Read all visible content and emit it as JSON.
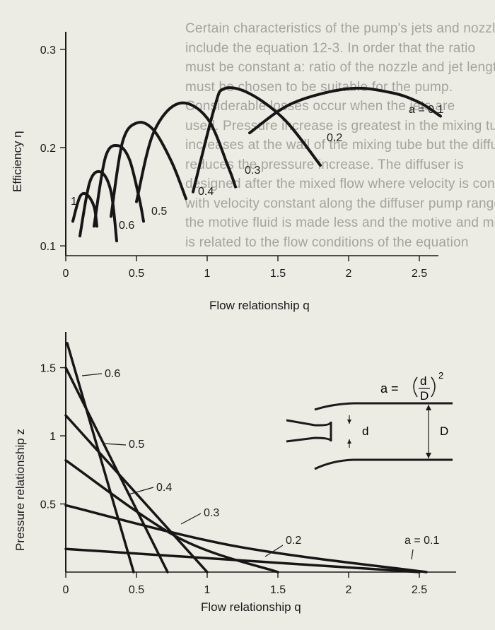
{
  "background_text": [
    "Certain characteristics of the pump's jets and nozzles",
    "include the equation 12-3. In order that the ratio",
    "must be constant a: ratio of the nozzle and jet length",
    "must be chosen to be suitable for the pump.",
    "Considerable losses occur when the jets are",
    "used. Pressure increase is greatest in the mixing tube",
    "increases at the wall of the mixing tube but the diffuser",
    "reduces the pressure increase. The diffuser is",
    "designed after the mixed flow where velocity is constant",
    "with velocity constant along the diffuser pump range",
    "the motive fluid is made less and the motive and mixed flow",
    "is related to the flow conditions of the equation"
  ],
  "chart_data": [
    {
      "type": "line",
      "title": "",
      "xlabel": "Flow relationship q",
      "ylabel": "Efficiency η",
      "xlim": [
        0,
        2.6
      ],
      "ylim": [
        0.09,
        0.31
      ],
      "xticks": [
        0,
        0.5,
        1,
        1.5,
        2,
        2.5
      ],
      "xtick_labels": [
        "0",
        "0.5",
        "1",
        "1.5",
        "2",
        "2.5"
      ],
      "yticks": [
        0.1,
        0.2,
        0.3
      ],
      "ytick_labels": [
        "0.1",
        "0.2",
        "0.3"
      ],
      "series": [
        {
          "name": "a = 0.1",
          "label": "a = 0.1",
          "x": [
            1.3,
            1.6,
            2.0,
            2.3,
            2.5,
            2.65
          ],
          "y": [
            0.215,
            0.245,
            0.26,
            0.256,
            0.246,
            0.232
          ]
        },
        {
          "name": "0.2",
          "label": "0.2",
          "x": [
            0.9,
            1.05,
            1.12,
            1.3,
            1.55,
            1.8
          ],
          "y": [
            0.155,
            0.24,
            0.26,
            0.255,
            0.228,
            0.182
          ]
        },
        {
          "name": "0.3",
          "label": "0.3",
          "x": [
            0.5,
            0.62,
            0.8,
            1.0,
            1.15,
            1.2
          ],
          "y": [
            0.145,
            0.215,
            0.245,
            0.23,
            0.18,
            0.16
          ]
        },
        {
          "name": "0.4",
          "label": "0.4",
          "x": [
            0.32,
            0.4,
            0.5,
            0.62,
            0.75,
            0.85
          ],
          "y": [
            0.13,
            0.205,
            0.225,
            0.218,
            0.185,
            0.148
          ]
        },
        {
          "name": "0.5",
          "label": "0.5",
          "x": [
            0.2,
            0.28,
            0.37,
            0.45,
            0.52,
            0.55
          ],
          "y": [
            0.12,
            0.19,
            0.202,
            0.188,
            0.148,
            0.125
          ]
        },
        {
          "name": "0.6",
          "label": "0.6",
          "x": [
            0.1,
            0.17,
            0.25,
            0.32,
            0.36
          ],
          "y": [
            0.11,
            0.165,
            0.175,
            0.155,
            0.105
          ]
        },
        {
          "name": "1",
          "label": "1",
          "x": [
            0.05,
            0.1,
            0.15,
            0.2,
            0.22
          ],
          "y": [
            0.125,
            0.15,
            0.152,
            0.14,
            0.12
          ]
        }
      ]
    },
    {
      "type": "line",
      "title": "",
      "xlabel": "Flow relationship q",
      "ylabel": "Pressure relationship z",
      "xlim": [
        0,
        2.6
      ],
      "ylim": [
        0,
        1.7
      ],
      "xticks": [
        0,
        0.5,
        1,
        1.5,
        2,
        2.5
      ],
      "xtick_labels": [
        "0",
        "0.5",
        "1",
        "1.5",
        "2",
        "2.5"
      ],
      "yticks": [
        0.5,
        1,
        1.5
      ],
      "ytick_labels": [
        "0.5",
        "1",
        "1.5"
      ],
      "series": [
        {
          "name": "a = 0.1",
          "label": "a = 0.1",
          "x": [
            0,
            2.5
          ],
          "y": [
            0.17,
            0
          ]
        },
        {
          "name": "0.2",
          "label": "0.2",
          "x": [
            0,
            1.2,
            2.55
          ],
          "y": [
            0.49,
            0.19,
            0
          ]
        },
        {
          "name": "0.3",
          "label": "0.3",
          "x": [
            0,
            0.8,
            1.5
          ],
          "y": [
            0.82,
            0.25,
            0
          ]
        },
        {
          "name": "0.4",
          "label": "0.4",
          "x": [
            0,
            1.0
          ],
          "y": [
            1.15,
            0
          ]
        },
        {
          "name": "0.5",
          "label": "0.5",
          "x": [
            0,
            0.72
          ],
          "y": [
            1.5,
            0
          ]
        },
        {
          "name": "0.6",
          "label": "0.6",
          "x": [
            0.01,
            0.48
          ],
          "y": [
            1.68,
            0
          ]
        }
      ]
    }
  ],
  "inset": {
    "formula_lhs": "a =",
    "numerator": "d",
    "denominator": "D",
    "exponent": "2",
    "small_d_label": "d",
    "big_d_label": "D"
  }
}
